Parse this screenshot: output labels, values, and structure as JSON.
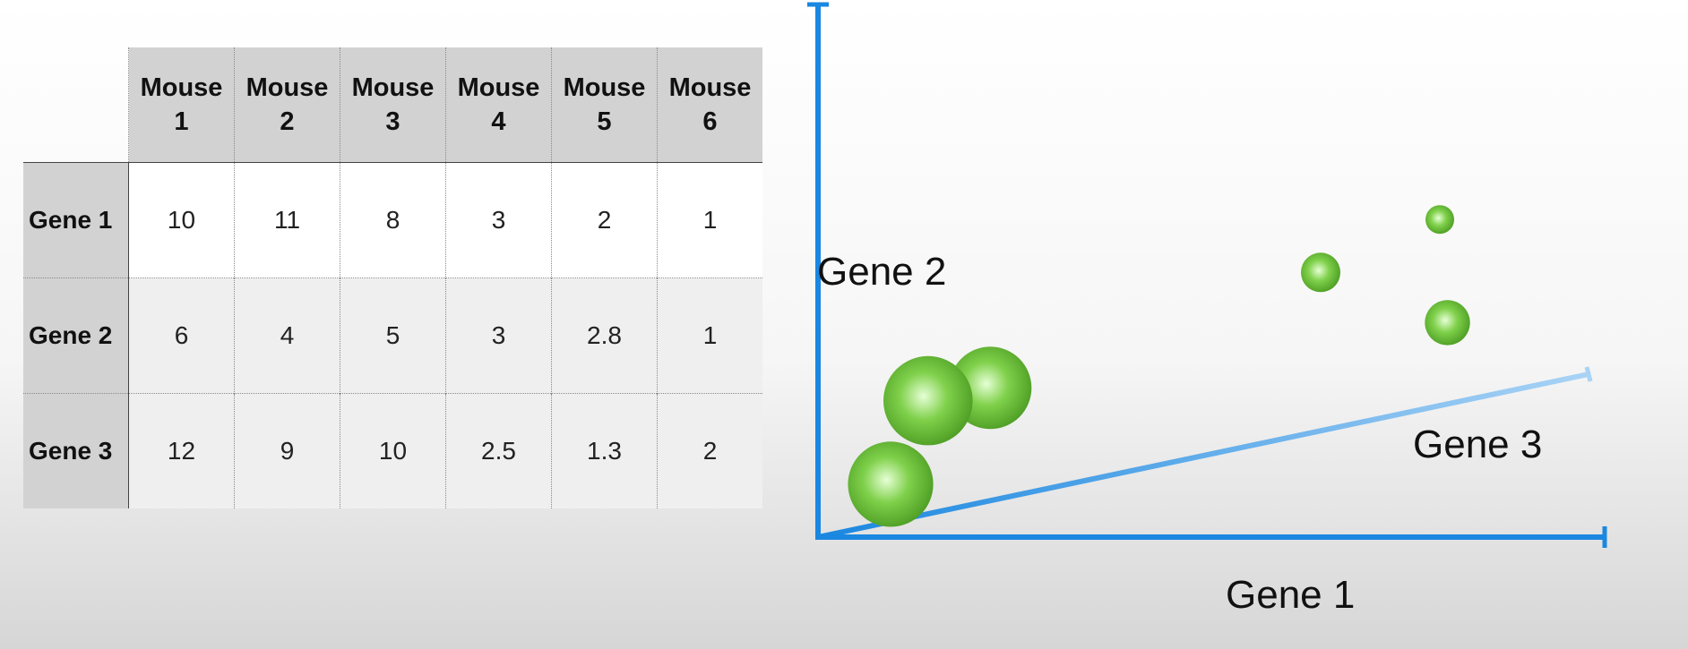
{
  "table": {
    "columns": [
      "Mouse\n1",
      "Mouse\n2",
      "Mouse\n3",
      "Mouse\n4",
      "Mouse\n5",
      "Mouse\n6"
    ],
    "column_lines": [
      [
        "Mouse",
        "1"
      ],
      [
        "Mouse",
        "2"
      ],
      [
        "Mouse",
        "3"
      ],
      [
        "Mouse",
        "4"
      ],
      [
        "Mouse",
        "5"
      ],
      [
        "Mouse",
        "6"
      ]
    ],
    "rows": [
      {
        "label": "Gene 1",
        "values": [
          "10",
          "11",
          "8",
          "3",
          "2",
          "1"
        ]
      },
      {
        "label": "Gene 2",
        "values": [
          "6",
          "4",
          "5",
          "3",
          "2.8",
          "1"
        ]
      },
      {
        "label": "Gene 3",
        "values": [
          "12",
          "9",
          "10",
          "2.5",
          "1.3",
          "2"
        ]
      }
    ]
  },
  "chart_data": {
    "type": "scatter",
    "dimensions": 3,
    "xlabel": "Gene 1",
    "ylabel": "Gene 2",
    "zlabel": "Gene 3",
    "grid": false,
    "points": [
      {
        "x": 10,
        "y": 6,
        "z": 12
      },
      {
        "x": 11,
        "y": 4,
        "z": 9
      },
      {
        "x": 8,
        "y": 5,
        "z": 10
      },
      {
        "x": 3,
        "y": 3,
        "z": 2.5
      },
      {
        "x": 2,
        "y": 2.8,
        "z": 1.3
      },
      {
        "x": 1,
        "y": 1,
        "z": 2
      }
    ],
    "colors": {
      "axis": "#1a87e0",
      "axis_depth_end": "#a9d3f5",
      "point": "#7fd04a",
      "point_highlight": "#e6ffd6",
      "point_shadow": "#4a9a22"
    }
  }
}
